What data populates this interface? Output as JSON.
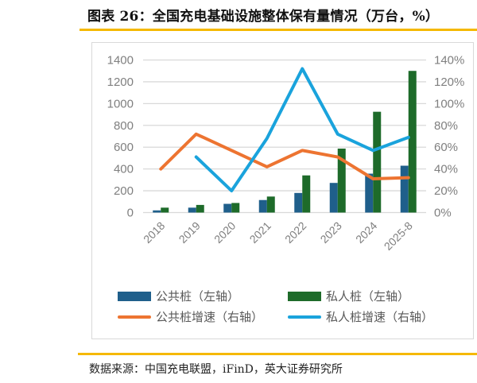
{
  "header": {
    "title": "图表 26：全国充电基础设施整体保有量情况（万台，%）"
  },
  "footer": {
    "source": "数据来源：中国充电联盟，iFinD，英大证券研究所"
  },
  "colors": {
    "accent_rule": "#f5b800",
    "public_bar": "#1f5f8b",
    "private_bar": "#1e6b2a",
    "public_growth": "#ed7431",
    "private_growth": "#1aa3dc",
    "gridline": "#d9d9d9",
    "axis_text": "#7f7f7f"
  },
  "legend": {
    "items": [
      {
        "label": "公共桩（左轴）",
        "type": "bar",
        "color": "#1f5f8b"
      },
      {
        "label": "私人桩（左轴）",
        "type": "bar",
        "color": "#1e6b2a"
      },
      {
        "label": "公共桩增速（右轴）",
        "type": "line",
        "color": "#ed7431"
      },
      {
        "label": "私人桩增速（右轴）",
        "type": "line",
        "color": "#1aa3dc"
      }
    ]
  },
  "chart_data": {
    "type": "bar+line",
    "title": "图表 26：全国充电基础设施整体保有量情况（万台，%）",
    "xlabel": "",
    "ylabel_left": "万台",
    "ylabel_right": "%",
    "categories": [
      "2018",
      "2019",
      "2020",
      "2021",
      "2022",
      "2023",
      "2024",
      "2025-8"
    ],
    "left_axis": {
      "min": 0,
      "max": 1400,
      "step": 200,
      "ticks": [
        "0",
        "200",
        "400",
        "600",
        "800",
        "1000",
        "1200",
        "1400"
      ]
    },
    "right_axis": {
      "min": 0,
      "max": 140,
      "step": 20,
      "ticks": [
        "0%",
        "20%",
        "40%",
        "60%",
        "80%",
        "100%",
        "120%",
        "140%"
      ]
    },
    "grid": true,
    "legend_position": "bottom",
    "series": [
      {
        "name": "公共桩（左轴）",
        "type": "bar",
        "axis": "left",
        "values": [
          20,
          45,
          80,
          115,
          180,
          272,
          357,
          430
        ]
      },
      {
        "name": "私人桩（左轴）",
        "type": "bar",
        "axis": "left",
        "values": [
          45,
          70,
          88,
          147,
          341,
          587,
          925,
          1300
        ]
      },
      {
        "name": "公共桩增速（右轴）",
        "type": "line",
        "axis": "right",
        "values": [
          40,
          72,
          57,
          42,
          57,
          51,
          31,
          32
        ]
      },
      {
        "name": "私人桩增速（右轴）",
        "type": "line",
        "axis": "right",
        "values": [
          null,
          51,
          20,
          68,
          132,
          72,
          57,
          69
        ]
      }
    ]
  }
}
